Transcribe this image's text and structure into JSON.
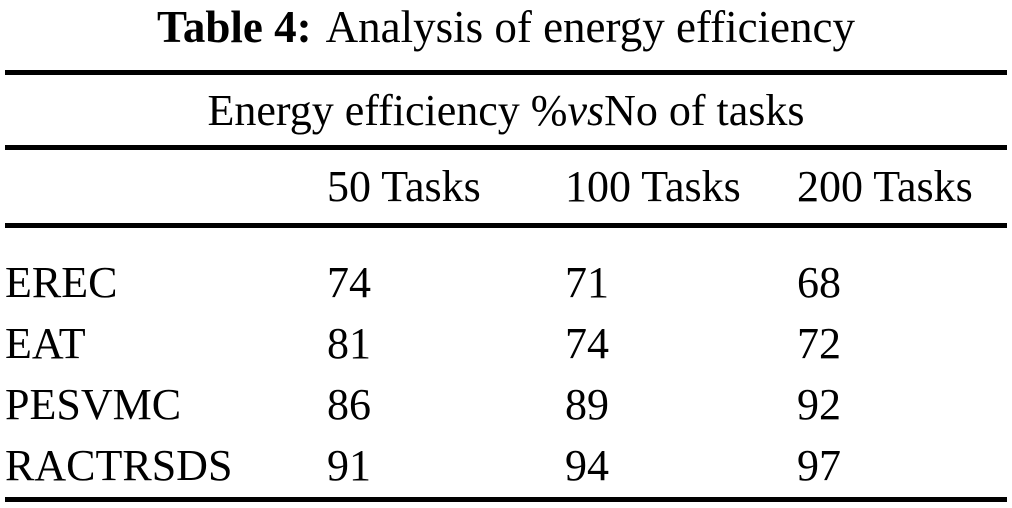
{
  "caption": {
    "label": "Table 4:",
    "text": "Analysis of energy efficiency"
  },
  "table": {
    "title": {
      "prefix": "Energy efficiency % ",
      "vs": "vs",
      "suffix": " No of tasks"
    },
    "columns": [
      "50 Tasks",
      "100 Tasks",
      "200 Tasks"
    ],
    "rows": [
      {
        "method": "EREC",
        "values": [
          "74",
          "71",
          "68"
        ]
      },
      {
        "method": "EAT",
        "values": [
          "81",
          "74",
          "72"
        ]
      },
      {
        "method": "PESVMC",
        "values": [
          "86",
          "89",
          "92"
        ]
      },
      {
        "method": "RACTRSDS",
        "values": [
          "91",
          "94",
          "97"
        ]
      }
    ]
  },
  "colors": {
    "text": "#000000",
    "background": "#ffffff",
    "rule": "#000000"
  },
  "chart_data": {
    "type": "table",
    "title": "Energy efficiency % vs No of tasks",
    "caption": "Table 4: Analysis of energy efficiency",
    "categories": [
      "50 Tasks",
      "100 Tasks",
      "200 Tasks"
    ],
    "series": [
      {
        "name": "EREC",
        "values": [
          74,
          71,
          68
        ]
      },
      {
        "name": "EAT",
        "values": [
          81,
          74,
          72
        ]
      },
      {
        "name": "PESVMC",
        "values": [
          86,
          89,
          92
        ]
      },
      {
        "name": "RACTRSDS",
        "values": [
          91,
          94,
          97
        ]
      }
    ],
    "ylabel": "Energy efficiency %",
    "xlabel": "No of tasks"
  }
}
